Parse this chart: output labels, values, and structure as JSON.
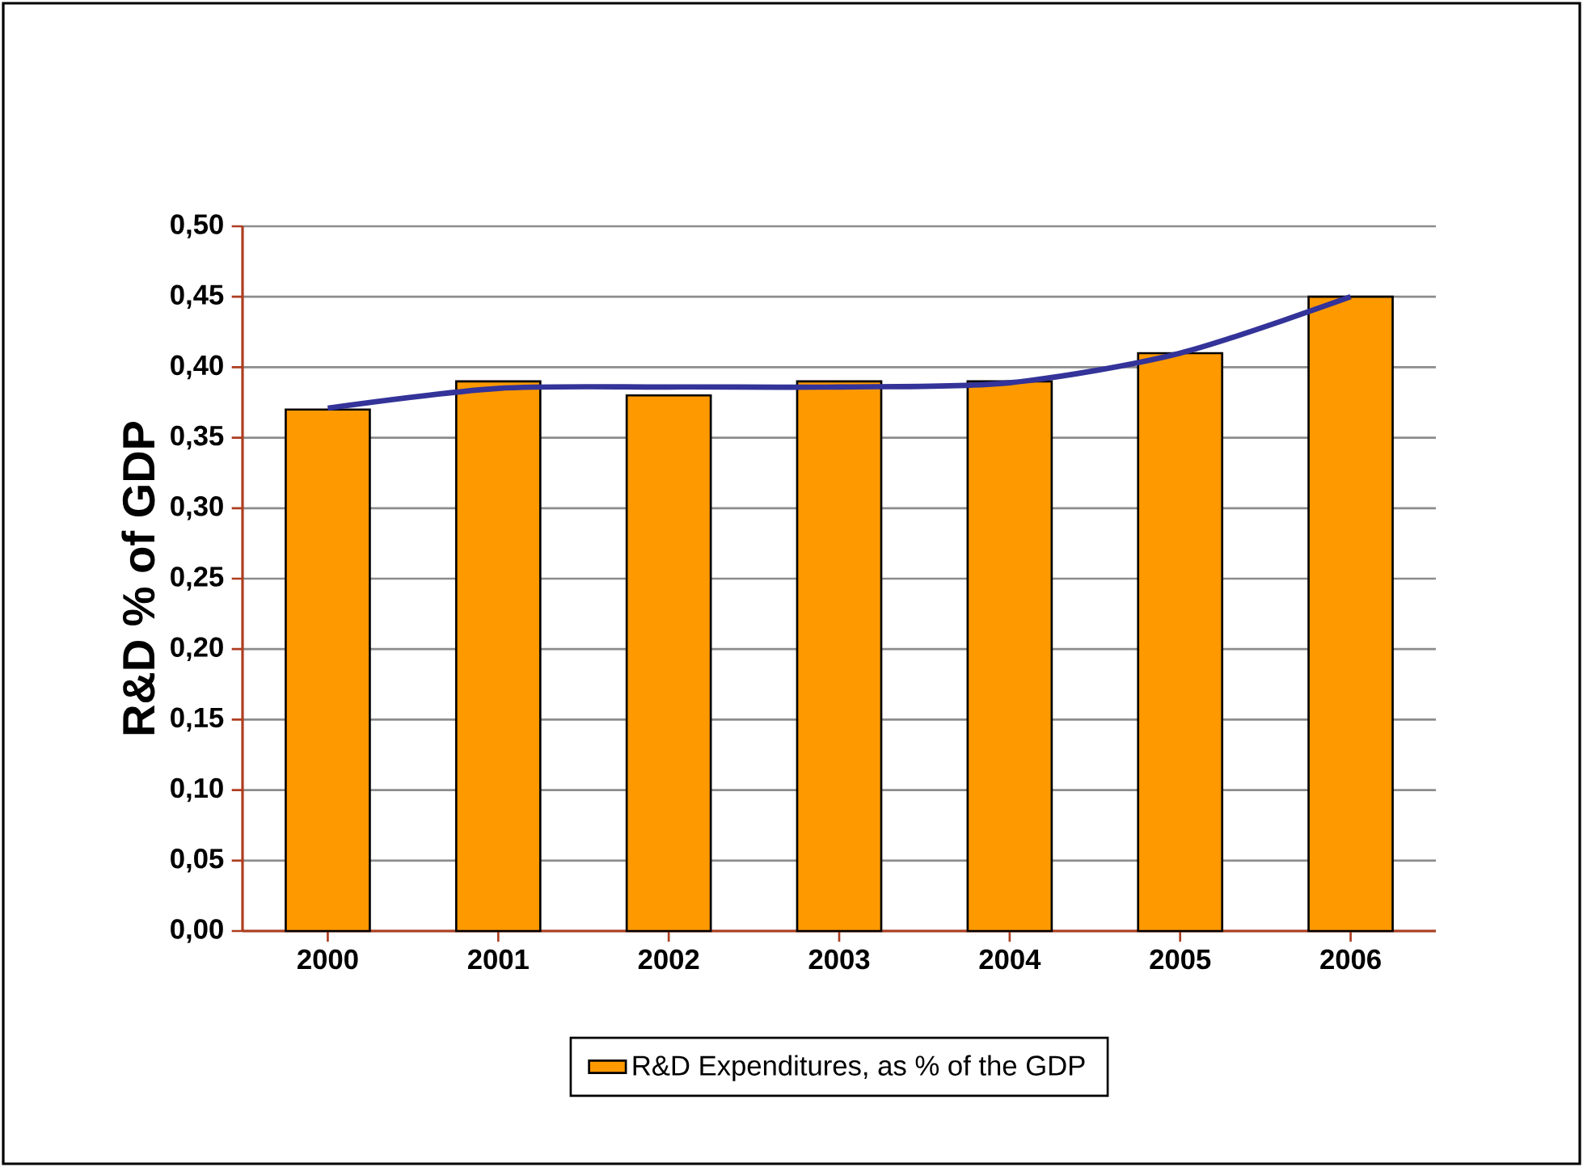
{
  "chart_data": {
    "type": "bar",
    "ylabel": "R&D % of GDP",
    "categories": [
      "2000",
      "2001",
      "2002",
      "2003",
      "2004",
      "2005",
      "2006"
    ],
    "series": [
      {
        "name": "R&D Expenditures, as % of the GDP",
        "color": "#ff9900",
        "values": [
          0.37,
          0.39,
          0.38,
          0.39,
          0.39,
          0.41,
          0.45
        ]
      },
      {
        "type": "line",
        "color": "#333399",
        "values": [
          0.371,
          0.385,
          0.386,
          0.386,
          0.389,
          0.41,
          0.45
        ]
      }
    ],
    "ylim": [
      0,
      0.5
    ],
    "yticks": [
      {
        "value": 0,
        "label": "0,00"
      },
      {
        "value": 0.05,
        "label": "0,05"
      },
      {
        "value": 0.1,
        "label": "0,10"
      },
      {
        "value": 0.15,
        "label": "0,15"
      },
      {
        "value": 0.2,
        "label": "0,20"
      },
      {
        "value": 0.25,
        "label": "0,25"
      },
      {
        "value": 0.3,
        "label": "0,30"
      },
      {
        "value": 0.35,
        "label": "0,35"
      },
      {
        "value": 0.4,
        "label": "0,40"
      },
      {
        "value": 0.45,
        "label": "0,45"
      },
      {
        "value": 0.5,
        "label": "0,50"
      }
    ],
    "grid": "y",
    "legend": "bottom"
  }
}
